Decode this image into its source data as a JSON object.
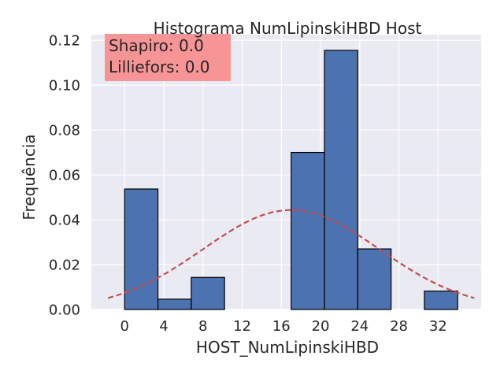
{
  "chart_data": {
    "type": "bar",
    "title": "Histograma NumLipinskiHBD Host",
    "xlabel": "HOST_NumLipinskiHBD",
    "ylabel": "Frequência",
    "xlim": [
      -3.4,
      36.4
    ],
    "ylim": [
      0,
      0.1225
    ],
    "xticks": [
      0,
      4,
      8,
      12,
      16,
      20,
      24,
      28,
      32
    ],
    "yticks": [
      0.0,
      0.02,
      0.04,
      0.06,
      0.08,
      0.1,
      0.12
    ],
    "ytick_labels": [
      "0.00",
      "0.02",
      "0.04",
      "0.06",
      "0.08",
      "0.10, ",
      "0.12"
    ],
    "grid": true,
    "bins": [
      {
        "x0": 0.0,
        "x1": 3.4,
        "value": 0.0537
      },
      {
        "x0": 3.4,
        "x1": 6.8,
        "value": 0.0046
      },
      {
        "x0": 6.8,
        "x1": 10.2,
        "value": 0.0143
      },
      {
        "x0": 10.2,
        "x1": 13.6,
        "value": 0.0
      },
      {
        "x0": 13.6,
        "x1": 17.0,
        "value": 0.0
      },
      {
        "x0": 17.0,
        "x1": 20.4,
        "value": 0.07
      },
      {
        "x0": 20.4,
        "x1": 23.8,
        "value": 0.1155
      },
      {
        "x0": 23.8,
        "x1": 27.2,
        "value": 0.027
      },
      {
        "x0": 27.2,
        "x1": 30.6,
        "value": 0.0
      },
      {
        "x0": 30.6,
        "x1": 34.0,
        "value": 0.0082
      }
    ],
    "normal_curve": {
      "mean": 17.0,
      "sd": 9.0,
      "x_range": [
        -1.7,
        35.7
      ]
    },
    "annotation": {
      "lines": [
        "Shapiro: 0.0",
        "Lilliefors: 0.0"
      ],
      "position": "top-left"
    },
    "colors": {
      "bar_fill": "#4c72b0",
      "bar_edge": "#000000",
      "curve": "#c44e52",
      "plot_bg": "#eaeaf2",
      "grid": "#ffffff",
      "annotation_bg": "#f88f8f"
    }
  }
}
